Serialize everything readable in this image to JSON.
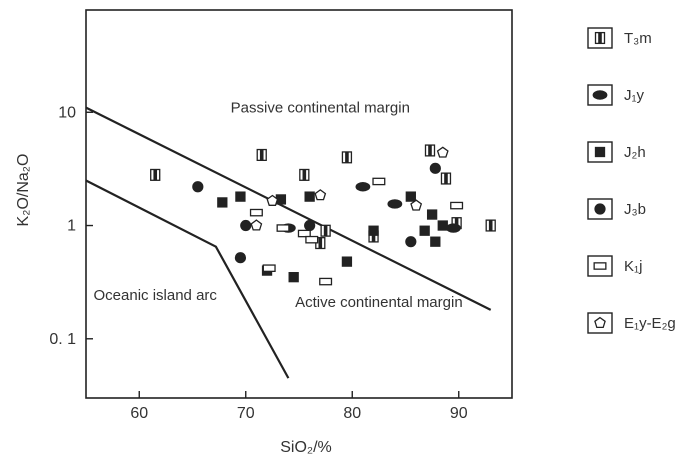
{
  "chart_data": {
    "type": "scatter",
    "title": "",
    "xlabel": "SiO₂/%",
    "ylabel": "K₂O/Na₂O",
    "xlim": [
      55,
      95
    ],
    "ylim": [
      0.03,
      80
    ],
    "yscale": "log",
    "x_ticks": [
      {
        "v": 60,
        "label": "60"
      },
      {
        "v": 70,
        "label": "70"
      },
      {
        "v": 80,
        "label": "80"
      },
      {
        "v": 90,
        "label": "90"
      }
    ],
    "y_ticks": [
      {
        "v": 10,
        "label": "10"
      },
      {
        "v": 1,
        "label": "1"
      },
      {
        "v": 0.1,
        "label": "0. 1"
      }
    ],
    "grid": false,
    "legend_position": "right",
    "boundaries": [
      {
        "points": [
          [
            55,
            11
          ],
          [
            93,
            0.18
          ]
        ]
      },
      {
        "points": [
          [
            55,
            2.5
          ],
          [
            67.2,
            0.65
          ],
          [
            74,
            0.045
          ]
        ]
      }
    ],
    "regions": [
      {
        "label": "Passive continental margin",
        "x": 77,
        "y": 10
      },
      {
        "label": "Oceanic island arc",
        "x": 61.5,
        "y": 0.22
      },
      {
        "label": "Active continental margin",
        "x": 82.5,
        "y": 0.19
      }
    ],
    "series": [
      {
        "name": "T₃m",
        "marker": "striped-square",
        "points": [
          [
            61.5,
            2.8
          ],
          [
            71.5,
            4.2
          ],
          [
            75.5,
            2.8
          ],
          [
            79.5,
            4.0
          ],
          [
            87.3,
            4.6
          ],
          [
            88.8,
            2.6
          ],
          [
            77.5,
            0.9
          ],
          [
            82.0,
            0.8
          ],
          [
            93.0,
            1.0
          ],
          [
            89.8,
            1.05
          ],
          [
            77.0,
            0.7
          ]
        ]
      },
      {
        "name": "J₁y",
        "marker": "ellipse",
        "points": [
          [
            81.0,
            2.2
          ],
          [
            84.0,
            1.55
          ],
          [
            89.5,
            0.95
          ],
          [
            74.0,
            0.95
          ]
        ]
      },
      {
        "name": "J₂h",
        "marker": "filled-square",
        "points": [
          [
            67.8,
            1.6
          ],
          [
            69.5,
            1.8
          ],
          [
            73.3,
            1.7
          ],
          [
            76.0,
            1.8
          ],
          [
            72.0,
            0.4
          ],
          [
            74.5,
            0.35
          ],
          [
            79.5,
            0.48
          ],
          [
            82.0,
            0.9
          ],
          [
            85.5,
            1.8
          ],
          [
            86.8,
            0.9
          ],
          [
            87.5,
            1.25
          ],
          [
            88.5,
            1.0
          ],
          [
            87.8,
            0.72
          ]
        ]
      },
      {
        "name": "J₃b",
        "marker": "circle",
        "points": [
          [
            65.5,
            2.2
          ],
          [
            70.0,
            1.0
          ],
          [
            69.5,
            0.52
          ],
          [
            76.0,
            1.0
          ],
          [
            85.5,
            0.72
          ],
          [
            87.8,
            3.2
          ]
        ]
      },
      {
        "name": "K₁j",
        "marker": "open-rectangle",
        "points": [
          [
            71.0,
            1.3
          ],
          [
            73.5,
            0.95
          ],
          [
            75.5,
            0.85
          ],
          [
            76.2,
            0.75
          ],
          [
            77.5,
            0.32
          ],
          [
            82.5,
            2.45
          ],
          [
            89.8,
            1.5
          ],
          [
            72.2,
            0.42
          ]
        ]
      },
      {
        "name": "E₁y-E₂g",
        "marker": "pentagon",
        "points": [
          [
            71.0,
            1.0
          ],
          [
            72.5,
            1.65
          ],
          [
            77.0,
            1.85
          ],
          [
            86.0,
            1.5
          ],
          [
            88.5,
            4.4
          ]
        ]
      }
    ]
  }
}
